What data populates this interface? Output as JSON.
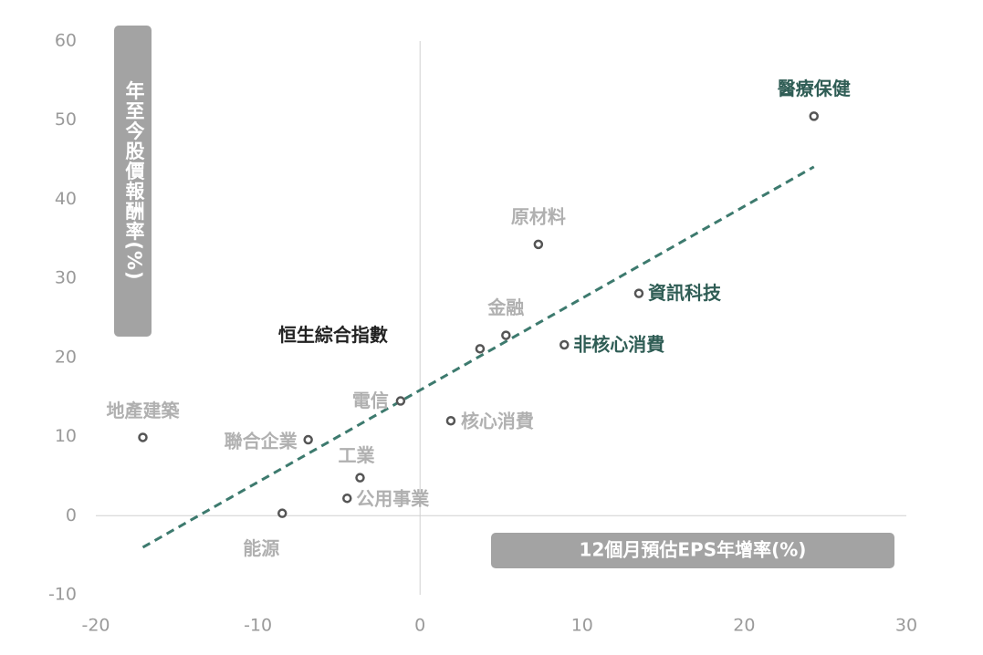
{
  "chart_data": {
    "type": "scatter",
    "ylabel": "年至今股價報酬率(%)",
    "xlabel": "12個月預估EPS年增率(%)",
    "xlim": [
      -20,
      30
    ],
    "ylim": [
      -10,
      60
    ],
    "xticks": [
      -20,
      -10,
      0,
      10,
      20,
      30
    ],
    "yticks": [
      -10,
      0,
      10,
      20,
      30,
      40,
      50,
      60
    ],
    "marker_color": "#555555",
    "trendline": {
      "color": "#3d7a6e",
      "x": [
        -17.1,
        24.3
      ],
      "y": [
        -4,
        44.1
      ]
    },
    "points": [
      {
        "name": "醫療保健",
        "x": 24.3,
        "y": 50.5,
        "color": "#2f5d55"
      },
      {
        "name": "原材料",
        "x": 7.3,
        "y": 34.3,
        "color": "#b0b0b0"
      },
      {
        "name": "資訊科技",
        "x": 13.5,
        "y": 28.1,
        "color": "#2f5d55"
      },
      {
        "name": "金融",
        "x": 5.3,
        "y": 22.8,
        "color": "#b0b0b0"
      },
      {
        "name": "恒生綜合指數",
        "x": 3.7,
        "y": 21.1,
        "color": "#222222"
      },
      {
        "name": "非核心消費",
        "x": 8.9,
        "y": 21.6,
        "color": "#2f5d55"
      },
      {
        "name": "電信",
        "x": -1.2,
        "y": 14.5,
        "color": "#b0b0b0"
      },
      {
        "name": "核心消費",
        "x": 1.9,
        "y": 12.0,
        "color": "#b0b0b0"
      },
      {
        "name": "地產建築",
        "x": -17.1,
        "y": 9.9,
        "color": "#b0b0b0"
      },
      {
        "name": "聯合企業",
        "x": -6.9,
        "y": 9.6,
        "color": "#b0b0b0"
      },
      {
        "name": "工業",
        "x": -3.7,
        "y": 4.8,
        "color": "#b0b0b0"
      },
      {
        "name": "公用事業",
        "x": -4.5,
        "y": 2.2,
        "color": "#b0b0b0"
      },
      {
        "name": "能源",
        "x": -8.5,
        "y": 0.3,
        "color": "#b0b0b0"
      }
    ]
  }
}
